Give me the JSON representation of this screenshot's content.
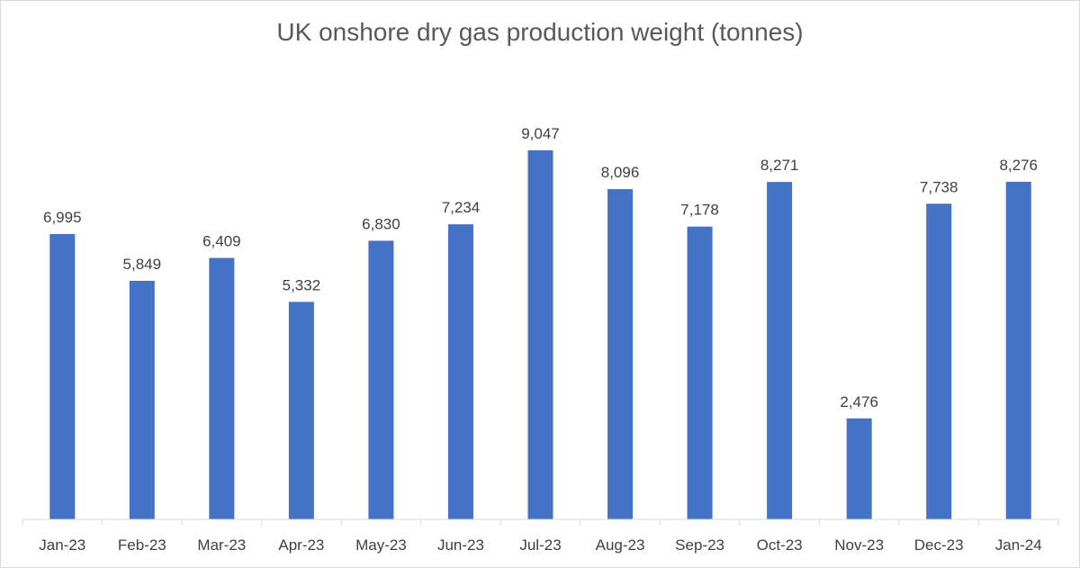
{
  "chart_data": {
    "type": "bar",
    "title": "UK onshore dry gas production weight (tonnes)",
    "xlabel": "",
    "ylabel": "",
    "categories": [
      "Jan-23",
      "Feb-23",
      "Mar-23",
      "Apr-23",
      "May-23",
      "Jun-23",
      "Jul-23",
      "Aug-23",
      "Sep-23",
      "Oct-23",
      "Nov-23",
      "Dec-23",
      "Jan-24"
    ],
    "values": [
      6995,
      5849,
      6409,
      5332,
      6830,
      7234,
      9047,
      8096,
      7178,
      8271,
      2476,
      7738,
      8276
    ],
    "value_labels": [
      "6,995",
      "5,849",
      "6,409",
      "5,332",
      "6,830",
      "7,234",
      "9,047",
      "8,096",
      "7,178",
      "8,271",
      "2,476",
      "7,738",
      "8,276"
    ],
    "ylim": [
      0,
      9047
    ],
    "grid": false,
    "legend": "none",
    "bar_color": "#4472c4"
  }
}
